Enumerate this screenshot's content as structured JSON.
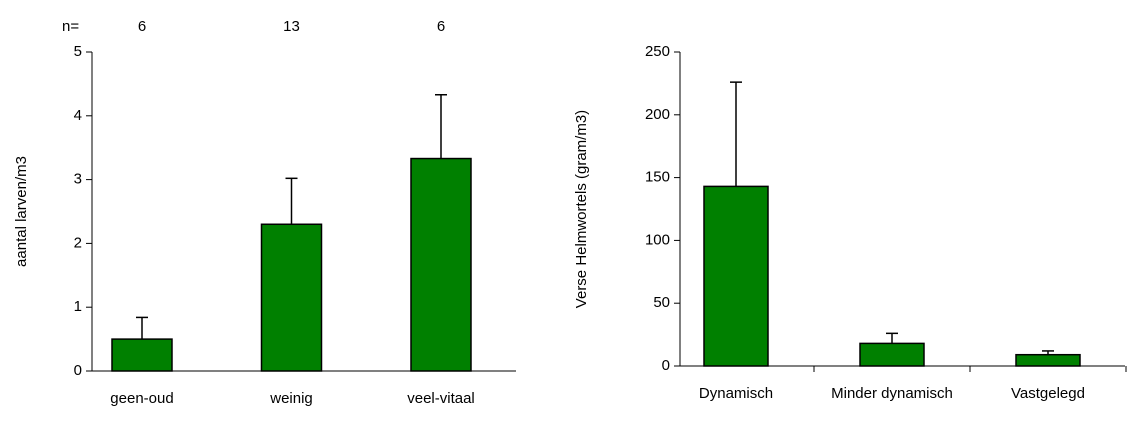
{
  "chart_data": [
    {
      "type": "bar",
      "y_label": "aantal larven/m3",
      "n_label": "n=",
      "n_values": [
        6,
        13,
        6
      ],
      "categories": [
        "geen-oud",
        "weinig",
        "veel-vitaal"
      ],
      "values": [
        0.5,
        2.3,
        3.33
      ],
      "errors": [
        0.34,
        0.72,
        1.0
      ],
      "color": "#008000",
      "ylim": [
        0,
        5
      ],
      "yticks": [
        0,
        1,
        2,
        3,
        4,
        5
      ]
    },
    {
      "type": "bar",
      "y_label": "Verse Helmwortels (gram/m3)",
      "categories": [
        "Dynamisch",
        "Minder dynamisch",
        "Vastgelegd"
      ],
      "values": [
        143,
        18,
        9
      ],
      "errors": [
        83,
        8,
        3
      ],
      "color": "#008000",
      "ylim": [
        0,
        250
      ],
      "yticks": [
        0,
        50,
        100,
        150,
        200,
        250
      ]
    }
  ]
}
